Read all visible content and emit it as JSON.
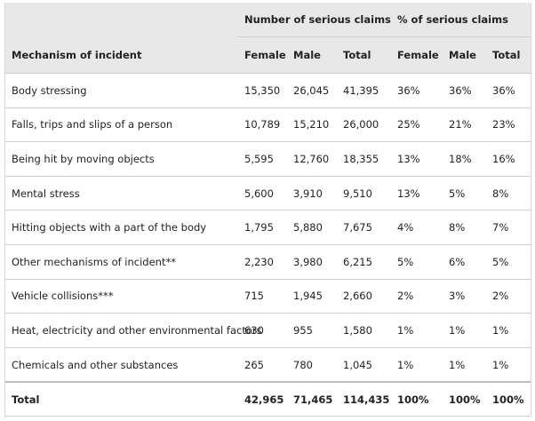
{
  "header": {
    "group_count": "Number of serious claims",
    "group_percent": "% of serious claims",
    "mechanism": "Mechanism of incident",
    "female": "Female",
    "male": "Male",
    "total": "Total",
    "female_pct": "Female",
    "male_pct": "Male",
    "total_pct": "Total"
  },
  "rows": [
    {
      "mechanism": "Body stressing",
      "female": "15,350",
      "male": "26,045",
      "total": "41,395",
      "female_pct": "36%",
      "male_pct": "36%",
      "total_pct": "36%"
    },
    {
      "mechanism": "Falls, trips and slips of a person",
      "female": "10,789",
      "male": "15,210",
      "total": "26,000",
      "female_pct": "25%",
      "male_pct": "21%",
      "total_pct": "23%"
    },
    {
      "mechanism": "Being hit by moving objects",
      "female": "5,595",
      "male": "12,760",
      "total": "18,355",
      "female_pct": "13%",
      "male_pct": "18%",
      "total_pct": "16%"
    },
    {
      "mechanism": "Mental stress",
      "female": "5,600",
      "male": "3,910",
      "total": "9,510",
      "female_pct": "13%",
      "male_pct": "5%",
      "total_pct": "8%"
    },
    {
      "mechanism": "Hitting objects with a part of the body",
      "female": "1,795",
      "male": "5,880",
      "total": "7,675",
      "female_pct": "4%",
      "male_pct": "8%",
      "total_pct": "7%"
    },
    {
      "mechanism": "Other mechanisms of incident**",
      "female": "2,230",
      "male": "3,980",
      "total": "6,215",
      "female_pct": "5%",
      "male_pct": "6%",
      "total_pct": "5%"
    },
    {
      "mechanism": "Vehicle collisions***",
      "female": "715",
      "male": "1,945",
      "total": "2,660",
      "female_pct": "2%",
      "male_pct": "3%",
      "total_pct": "2%"
    },
    {
      "mechanism": "Heat, electricity and other environmental factors",
      "female": "630",
      "male": "955",
      "total": "1,580",
      "female_pct": "1%",
      "male_pct": "1%",
      "total_pct": "1%"
    },
    {
      "mechanism": "Chemicals and other substances",
      "female": "265",
      "male": "780",
      "total": "1,045",
      "female_pct": "1%",
      "male_pct": "1%",
      "total_pct": "1%"
    }
  ],
  "total_row": {
    "mechanism": "Total",
    "female": "42,965",
    "male": "71,465",
    "total": "114,435",
    "female_pct": "100%",
    "male_pct": "100%",
    "total_pct": "100%"
  }
}
